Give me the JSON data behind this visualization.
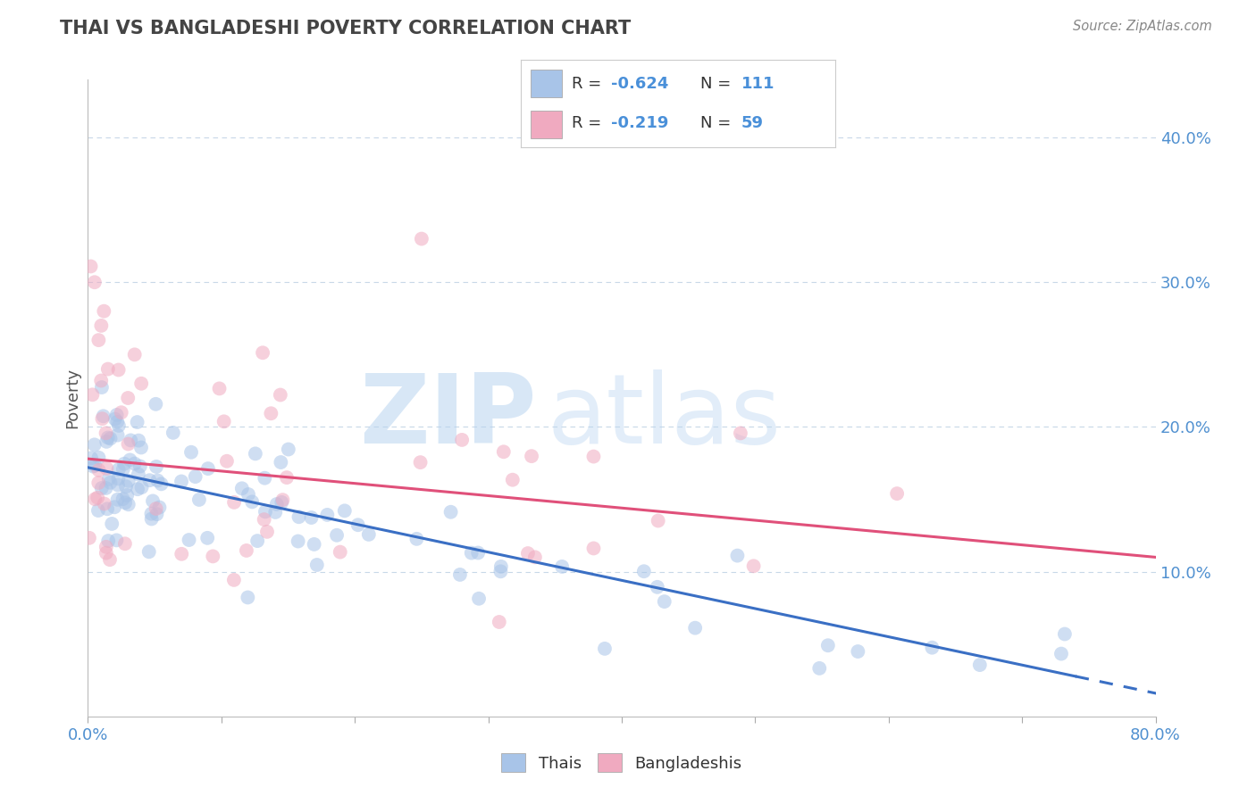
{
  "title": "THAI VS BANGLADESHI POVERTY CORRELATION CHART",
  "source": "Source: ZipAtlas.com",
  "ylabel": "Poverty",
  "y_ticks": [
    0.1,
    0.2,
    0.3,
    0.4
  ],
  "y_tick_labels": [
    "10.0%",
    "20.0%",
    "30.0%",
    "40.0%"
  ],
  "x_lim": [
    0.0,
    0.8
  ],
  "y_lim": [
    0.0,
    0.44
  ],
  "blue_color": "#a8c4e8",
  "pink_color": "#f0aac0",
  "blue_line_color": "#3a6fc4",
  "pink_line_color": "#e0507a",
  "blue_alpha": 0.55,
  "pink_alpha": 0.55,
  "legend_label_blue": "Thais",
  "legend_label_pink": "Bangladeshis",
  "watermark_zip": "ZIP",
  "watermark_atlas": "atlas",
  "watermark_color": "#cce0f5",
  "grid_color": "#c8d8e8",
  "title_color": "#444444",
  "source_color": "#888888",
  "tick_color": "#5090d0",
  "ylabel_color": "#555555",
  "blue_intercept": 0.172,
  "blue_slope": -0.195,
  "pink_intercept": 0.178,
  "pink_slope": -0.085,
  "dot_size": 130
}
